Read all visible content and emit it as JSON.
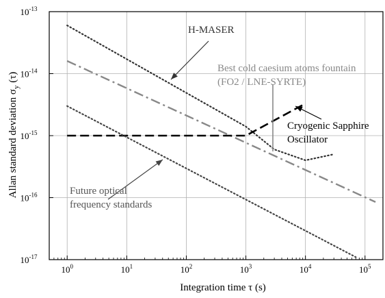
{
  "chart_data": {
    "type": "line",
    "scale": {
      "x": "log",
      "y": "log"
    },
    "xlim": [
      0.5,
      200000
    ],
    "ylim": [
      1e-17,
      1e-13
    ],
    "grid": true,
    "legend": "none",
    "xlabel": "Integration time τ (s)",
    "ylabel_prefix": "Allan standard deviation σ",
    "ylabel_sub": "y",
    "ylabel_suffix": " (τ)",
    "x_ticks": [
      {
        "value": 1,
        "base": "10",
        "exp": "0"
      },
      {
        "value": 10,
        "base": "10",
        "exp": "1"
      },
      {
        "value": 100,
        "base": "10",
        "exp": "2"
      },
      {
        "value": 1000,
        "base": "10",
        "exp": "3"
      },
      {
        "value": 10000,
        "base": "10",
        "exp": "4"
      },
      {
        "value": 100000,
        "base": "10",
        "exp": "5"
      }
    ],
    "y_ticks": [
      {
        "value": 1e-13,
        "base": "10",
        "exp": "-13"
      },
      {
        "value": 1e-14,
        "base": "10",
        "exp": "-14"
      },
      {
        "value": 1e-15,
        "base": "10",
        "exp": "-15"
      },
      {
        "value": 1e-16,
        "base": "10",
        "exp": "-16"
      },
      {
        "value": 1e-17,
        "base": "10",
        "exp": "-17"
      }
    ],
    "series": [
      {
        "name": "H-MASER",
        "color": "#333333",
        "style": "dotted",
        "points": [
          [
            1,
            6e-14
          ],
          [
            1000,
            1.4e-15
          ],
          [
            3000,
            6e-16
          ],
          [
            10000,
            4e-16
          ],
          [
            30000,
            5e-16
          ]
        ]
      },
      {
        "name": "Best cold caesium atoms fountain (FO2 / LNE-SYRTE)",
        "color": "#888888",
        "style": "dashdot",
        "points": [
          [
            1,
            1.6e-14
          ],
          [
            150000,
            8.5e-17
          ]
        ]
      },
      {
        "name": "Cryogenic Sapphire Oscillator",
        "color": "#000000",
        "style": "dashed",
        "points": [
          [
            1,
            1e-15
          ],
          [
            1000,
            1e-15
          ],
          [
            10000,
            3.3e-15
          ]
        ]
      },
      {
        "name": "Future optical frequency standards",
        "color": "#444444",
        "style": "dotted",
        "points": [
          [
            1,
            3e-15
          ],
          [
            70000,
            1.1e-17
          ]
        ]
      }
    ],
    "annotations": [
      {
        "id": "hmaser",
        "lines": [
          "H-MASER"
        ],
        "color": "#333333",
        "anchor": "start"
      },
      {
        "id": "fountain",
        "lines": [
          "Best cold caesium atoms fountain",
          "(FO2 / LNE-SYRTE)"
        ],
        "color": "#888888",
        "anchor": "start"
      },
      {
        "id": "cso",
        "lines": [
          "Cryogenic Sapphire",
          "Oscillator"
        ],
        "color": "#000000",
        "anchor": "start"
      },
      {
        "id": "optical",
        "lines": [
          "Future optical",
          "frequency standards"
        ],
        "color": "#555555",
        "anchor": "start"
      }
    ]
  }
}
